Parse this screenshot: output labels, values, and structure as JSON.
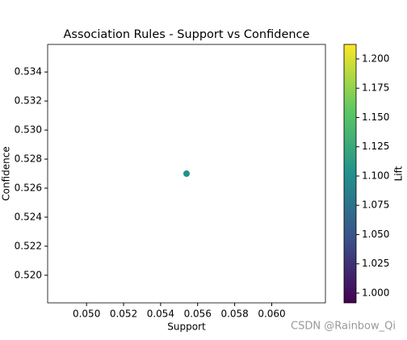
{
  "chart_data": {
    "type": "scatter",
    "title": "Association Rules - Support vs Confidence",
    "xlabel": "Support",
    "ylabel": "Confidence",
    "x": [
      0.0554
    ],
    "values": [
      0.527
    ],
    "color_values": [
      1.102
    ],
    "colormap": "viridis",
    "xlim": [
      0.0479,
      0.0629
    ],
    "xticks": [
      {
        "value": 0.05,
        "label": "0.050"
      },
      0.052,
      0.054,
      0.056,
      0.058,
      {
        "value": 0.06,
        "label": "0.060"
      }
    ],
    "ylim": [
      0.5181,
      0.5359
    ],
    "yticks": [
      {
        "value": 0.52,
        "label": "0.520"
      },
      0.522,
      0.524,
      0.526,
      0.528,
      {
        "value": 0.53,
        "label": "0.530"
      },
      0.532,
      0.534
    ],
    "colorbar_label": "Lift",
    "clim": [
      0.9917,
      1.2124
    ],
    "cticks": [
      {
        "value": 1.0,
        "label": "1.000"
      },
      1.025,
      {
        "value": 1.05,
        "label": "1.050"
      },
      1.075,
      {
        "value": 1.1,
        "label": "1.100"
      },
      1.125,
      {
        "value": 1.15,
        "label": "1.150"
      },
      1.175,
      {
        "value": 1.2,
        "label": "1.200"
      }
    ],
    "watermark": "CSDN @Rainbow_Qi"
  }
}
